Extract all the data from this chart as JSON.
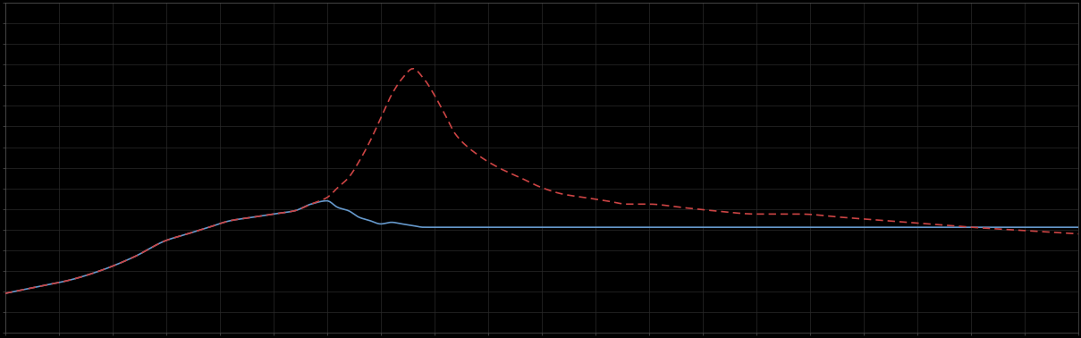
{
  "background_color": "#000000",
  "plot_bg_color": "#000000",
  "grid_color": "#2a2a2a",
  "blue_line_color": "#6699cc",
  "red_line_color": "#cc4444",
  "figsize": [
    12.09,
    3.78
  ],
  "dpi": 100,
  "xlim": [
    0,
    100
  ],
  "ylim": [
    0,
    100
  ],
  "spine_color": "#555555",
  "blue_x": [
    0,
    3,
    6,
    9,
    12,
    15,
    17,
    19,
    21,
    23,
    25,
    27,
    28.5,
    30,
    31,
    32,
    33,
    34,
    35,
    36,
    37,
    38,
    39,
    40,
    42,
    44,
    46,
    48,
    50,
    55,
    60,
    65,
    70,
    75,
    80,
    85,
    90,
    95,
    100
  ],
  "blue_y": [
    12,
    14,
    16,
    19,
    23,
    28,
    30,
    32,
    34,
    35,
    36,
    37,
    39,
    40,
    38,
    37,
    35,
    34,
    33,
    33.5,
    33,
    32.5,
    32,
    32,
    32,
    32,
    32,
    32,
    32,
    32,
    32,
    32,
    32,
    32,
    32,
    32,
    32,
    32,
    32
  ],
  "red_x": [
    0,
    3,
    6,
    9,
    12,
    15,
    17,
    19,
    21,
    23,
    25,
    27,
    28.5,
    30,
    31,
    32,
    33,
    34,
    35,
    36,
    37,
    38,
    39,
    40,
    41,
    42,
    44,
    46,
    48,
    50,
    52,
    54,
    56,
    58,
    60,
    63,
    66,
    70,
    74,
    78,
    82,
    86,
    90,
    95,
    100
  ],
  "red_y": [
    12,
    14,
    16,
    19,
    23,
    28,
    30,
    32,
    34,
    35,
    36,
    37,
    39,
    41,
    44,
    47,
    52,
    58,
    65,
    72,
    77,
    80,
    77,
    72,
    66,
    60,
    54,
    50,
    47,
    44,
    42,
    41,
    40,
    39,
    39,
    38,
    37,
    36,
    36,
    35,
    34,
    33,
    32,
    31,
    30
  ]
}
